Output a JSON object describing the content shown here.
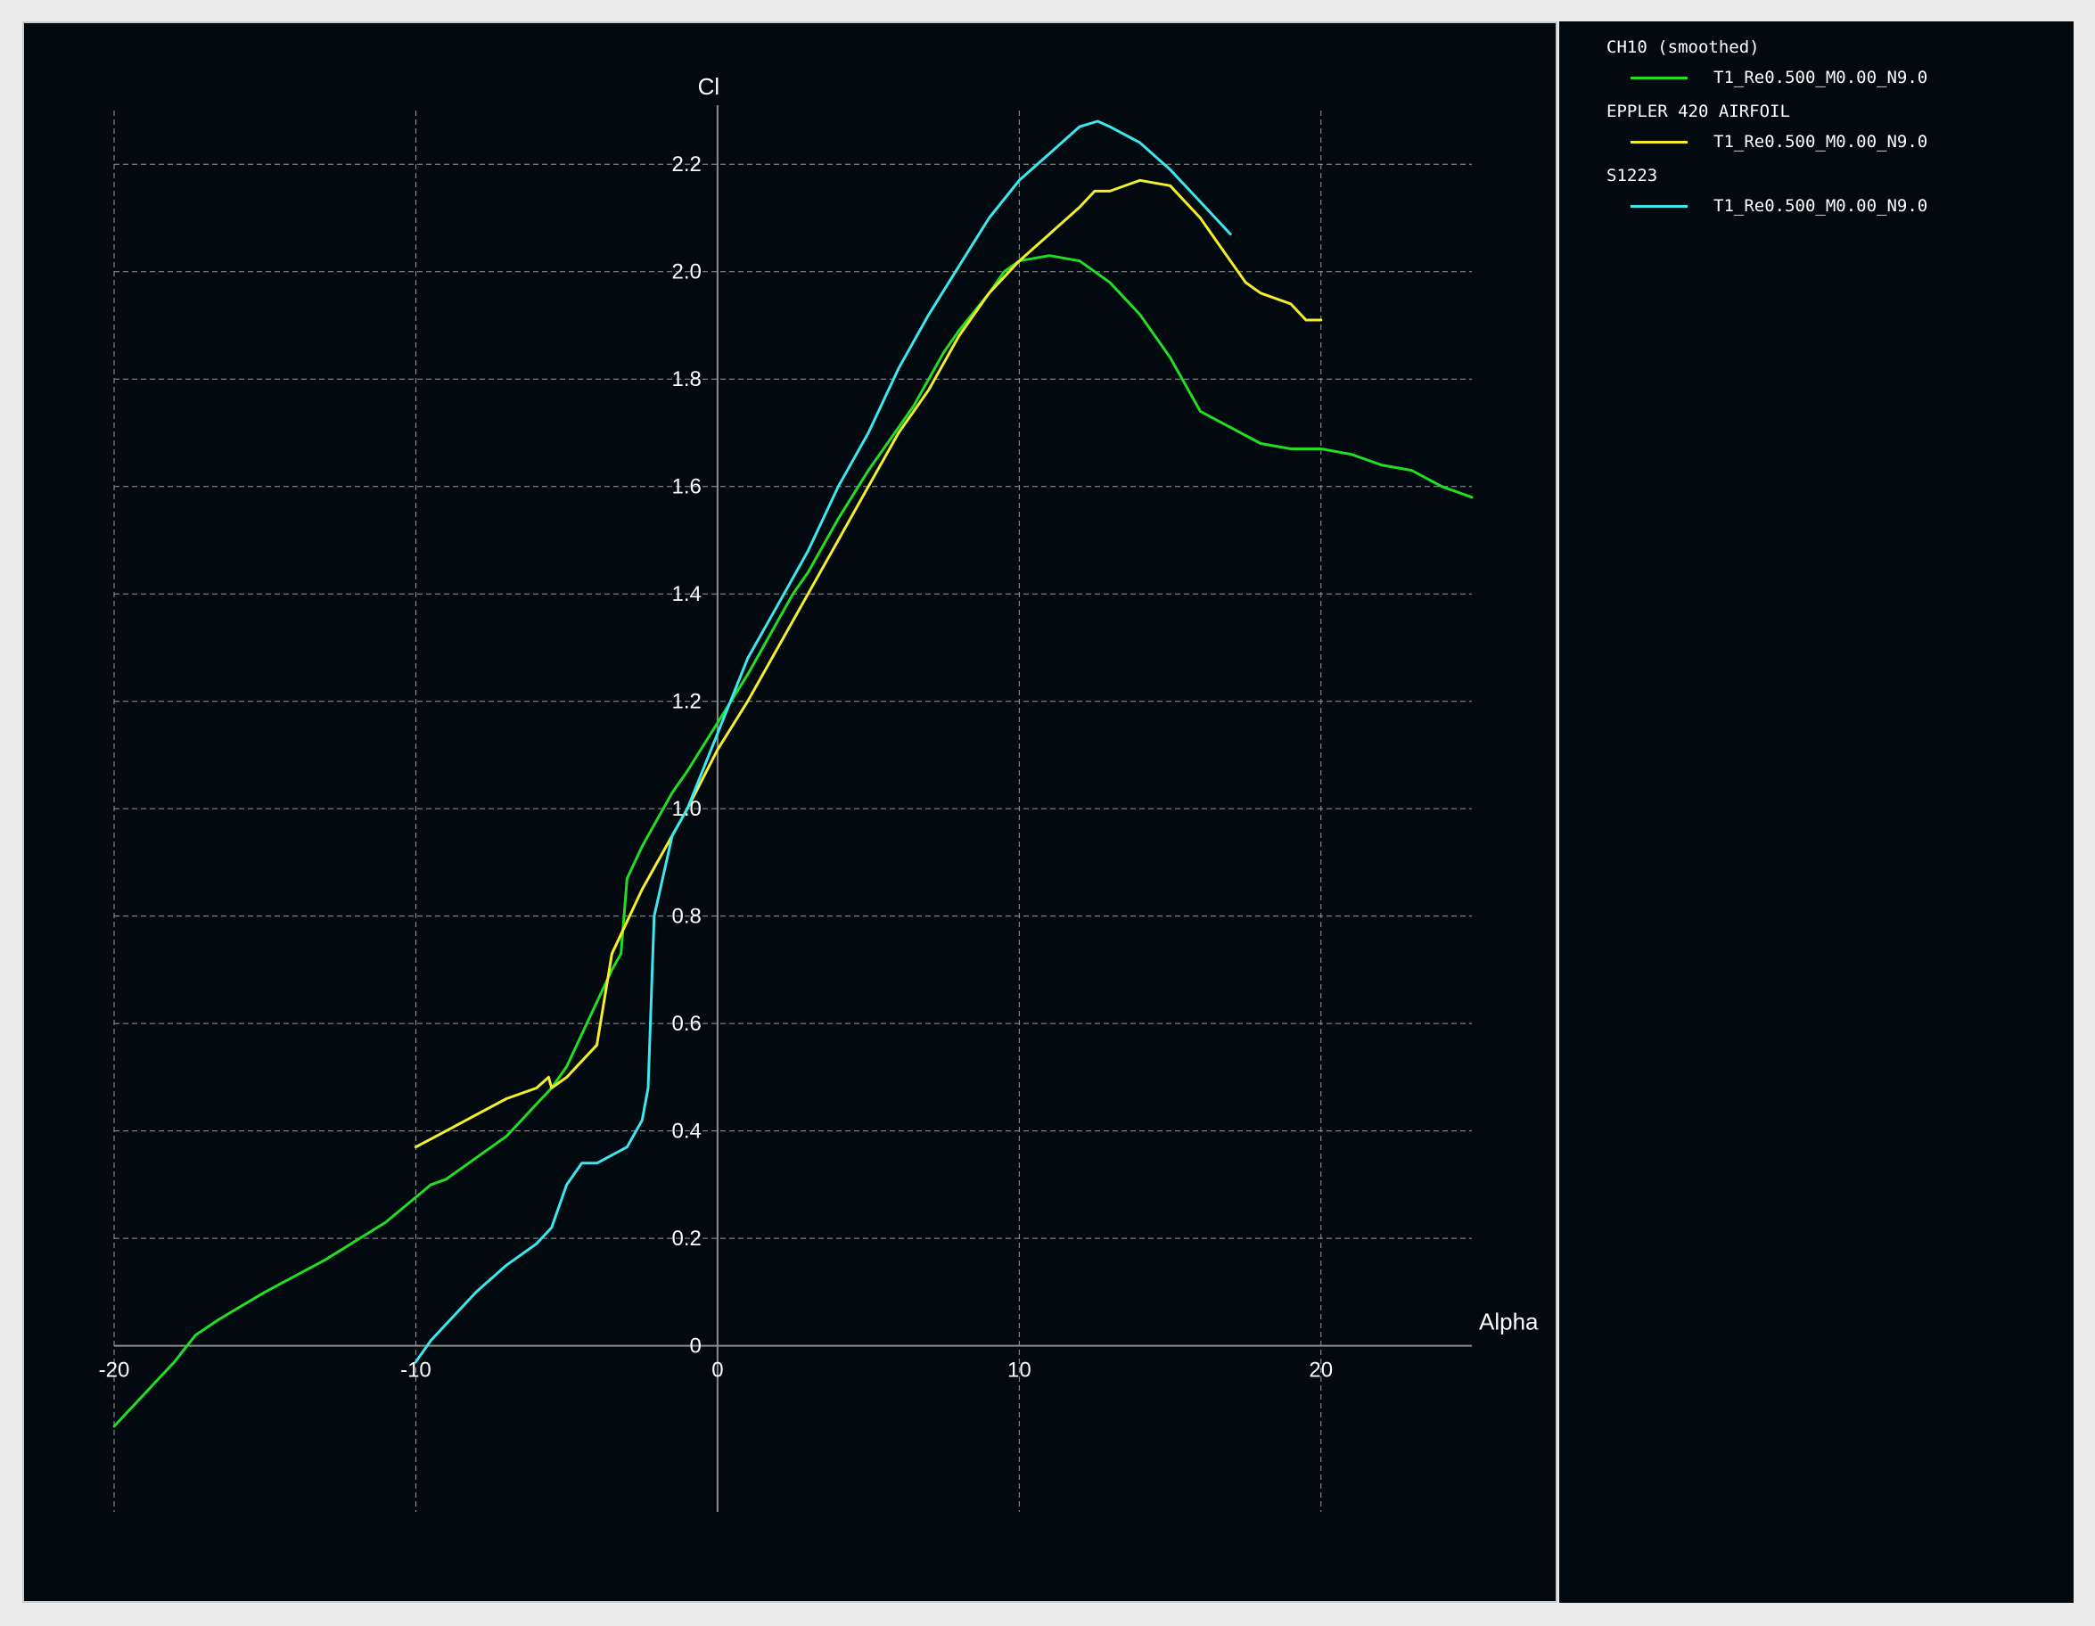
{
  "chart_data": {
    "type": "line",
    "xlabel": "Alpha",
    "ylabel": "Cl",
    "xlim": [
      -20,
      25
    ],
    "ylim": [
      -0.15,
      2.3
    ],
    "x_ticks": [
      -20,
      -10,
      0,
      10,
      20
    ],
    "x_tick_labels": [
      "-20",
      "-10",
      "0",
      "10",
      "20"
    ],
    "y_ticks": [
      0,
      0.2,
      0.4,
      0.6,
      0.8,
      1.0,
      1.2,
      1.4,
      1.6,
      1.8,
      2.0,
      2.2
    ],
    "y_tick_labels": [
      "0",
      "0.2",
      "0.4",
      "0.6",
      "0.8",
      "1.0",
      "1.2",
      "1.4",
      "1.6",
      "1.8",
      "2.0",
      "2.2"
    ],
    "grid": true,
    "legend_position": "right panel",
    "series": [
      {
        "name": "CH10 (smoothed)",
        "subtitle": "T1_Re0.500_M0.00_N9.0",
        "color": "#22dd22",
        "points": [
          [
            -20,
            -0.15
          ],
          [
            -19,
            -0.09
          ],
          [
            -18,
            -0.03
          ],
          [
            -17.3,
            0.02
          ],
          [
            -16.5,
            0.05
          ],
          [
            -15,
            0.1
          ],
          [
            -13,
            0.16
          ],
          [
            -11,
            0.23
          ],
          [
            -9.5,
            0.3
          ],
          [
            -9,
            0.31
          ],
          [
            -8,
            0.35
          ],
          [
            -7,
            0.39
          ],
          [
            -6.5,
            0.42
          ],
          [
            -6,
            0.45
          ],
          [
            -5.5,
            0.48
          ],
          [
            -5,
            0.52
          ],
          [
            -4.5,
            0.58
          ],
          [
            -4,
            0.64
          ],
          [
            -3.5,
            0.7
          ],
          [
            -3.2,
            0.73
          ],
          [
            -3,
            0.87
          ],
          [
            -2.5,
            0.93
          ],
          [
            -2,
            0.98
          ],
          [
            -1.5,
            1.03
          ],
          [
            -1,
            1.07
          ],
          [
            0,
            1.16
          ],
          [
            1,
            1.25
          ],
          [
            1.5,
            1.3
          ],
          [
            2,
            1.35
          ],
          [
            2.5,
            1.4
          ],
          [
            3,
            1.44
          ],
          [
            4,
            1.54
          ],
          [
            5,
            1.63
          ],
          [
            6,
            1.71
          ],
          [
            6.5,
            1.75
          ],
          [
            7,
            1.8
          ],
          [
            7.5,
            1.85
          ],
          [
            8,
            1.89
          ],
          [
            9,
            1.96
          ],
          [
            9.5,
            2.0
          ],
          [
            10,
            2.02
          ],
          [
            11,
            2.03
          ],
          [
            12,
            2.02
          ],
          [
            13,
            1.98
          ],
          [
            14,
            1.92
          ],
          [
            15,
            1.84
          ],
          [
            16,
            1.74
          ],
          [
            17,
            1.71
          ],
          [
            18,
            1.68
          ],
          [
            19,
            1.67
          ],
          [
            20,
            1.67
          ],
          [
            21,
            1.66
          ],
          [
            22,
            1.64
          ],
          [
            23,
            1.63
          ],
          [
            24,
            1.6
          ],
          [
            25,
            1.58
          ]
        ]
      },
      {
        "name": "EPPLER 420 AIRFOIL",
        "subtitle": "T1_Re0.500_M0.00_N9.0",
        "color": "#f5ef2a",
        "points": [
          [
            -10,
            0.37
          ],
          [
            -9,
            0.4
          ],
          [
            -8,
            0.43
          ],
          [
            -7,
            0.46
          ],
          [
            -6,
            0.48
          ],
          [
            -5.6,
            0.5
          ],
          [
            -5.5,
            0.48
          ],
          [
            -5,
            0.5
          ],
          [
            -4.5,
            0.53
          ],
          [
            -4,
            0.56
          ],
          [
            -3.5,
            0.73
          ],
          [
            -3,
            0.79
          ],
          [
            -2.5,
            0.85
          ],
          [
            -2,
            0.9
          ],
          [
            -1,
            1.0
          ],
          [
            0,
            1.11
          ],
          [
            1,
            1.2
          ],
          [
            2,
            1.3
          ],
          [
            3,
            1.4
          ],
          [
            4,
            1.5
          ],
          [
            5,
            1.6
          ],
          [
            6,
            1.7
          ],
          [
            7,
            1.78
          ],
          [
            8,
            1.88
          ],
          [
            9,
            1.96
          ],
          [
            10,
            2.02
          ],
          [
            11,
            2.07
          ],
          [
            12,
            2.12
          ],
          [
            12.5,
            2.15
          ],
          [
            13,
            2.15
          ],
          [
            14,
            2.17
          ],
          [
            15,
            2.16
          ],
          [
            16,
            2.1
          ],
          [
            16.5,
            2.06
          ],
          [
            17,
            2.02
          ],
          [
            17.5,
            1.98
          ],
          [
            18,
            1.96
          ],
          [
            19,
            1.94
          ],
          [
            19.5,
            1.91
          ],
          [
            20,
            1.91
          ]
        ]
      },
      {
        "name": "S1223",
        "subtitle": "T1_Re0.500_M0.00_N9.0",
        "color": "#3ee6ee",
        "points": [
          [
            -10,
            -0.03
          ],
          [
            -9.5,
            0.01
          ],
          [
            -9,
            0.04
          ],
          [
            -8,
            0.1
          ],
          [
            -7,
            0.15
          ],
          [
            -6,
            0.19
          ],
          [
            -5.5,
            0.22
          ],
          [
            -5,
            0.3
          ],
          [
            -4.5,
            0.34
          ],
          [
            -4,
            0.34
          ],
          [
            -3,
            0.37
          ],
          [
            -2.5,
            0.42
          ],
          [
            -2.3,
            0.48
          ],
          [
            -2.1,
            0.8
          ],
          [
            -1.5,
            0.95
          ],
          [
            -1,
            1.0
          ],
          [
            0,
            1.14
          ],
          [
            0.5,
            1.21
          ],
          [
            1,
            1.28
          ],
          [
            2,
            1.38
          ],
          [
            3,
            1.48
          ],
          [
            4,
            1.6
          ],
          [
            5,
            1.7
          ],
          [
            6,
            1.82
          ],
          [
            7,
            1.92
          ],
          [
            8,
            2.01
          ],
          [
            9,
            2.1
          ],
          [
            10,
            2.17
          ],
          [
            11,
            2.22
          ],
          [
            12,
            2.27
          ],
          [
            12.6,
            2.28
          ],
          [
            13,
            2.27
          ],
          [
            14,
            2.24
          ],
          [
            15,
            2.19
          ],
          [
            16,
            2.13
          ],
          [
            17,
            2.07
          ]
        ]
      }
    ]
  }
}
